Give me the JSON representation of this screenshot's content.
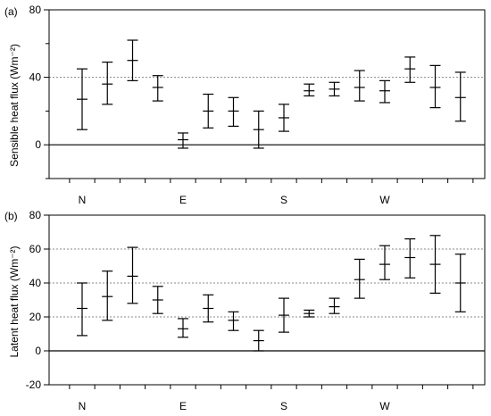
{
  "chart_data": [
    {
      "panel_label": "(a)",
      "type": "errorbar",
      "ylabel": "Sensible heat flux (Wm⁻²)",
      "ylim": [
        -20,
        80
      ],
      "yticks": [
        0,
        40,
        80
      ],
      "reference_lines": [
        40
      ],
      "zero_line": true,
      "grid": "dotted horizontal at 40",
      "x_tick_labels": [
        "N",
        "",
        "",
        "",
        "E",
        "",
        "",
        "",
        "S",
        "",
        "",
        "",
        "W",
        "",
        "",
        ""
      ],
      "points": [
        {
          "mean": 27,
          "low": 9,
          "high": 45
        },
        {
          "mean": 36,
          "low": 24,
          "high": 49
        },
        {
          "mean": 50,
          "low": 38,
          "high": 62
        },
        {
          "mean": 34,
          "low": 26,
          "high": 41
        },
        {
          "mean": 3,
          "low": -2,
          "high": 7
        },
        {
          "mean": 20,
          "low": 10,
          "high": 30
        },
        {
          "mean": 20,
          "low": 11,
          "high": 28
        },
        {
          "mean": 9,
          "low": -2,
          "high": 20
        },
        {
          "mean": 16,
          "low": 8,
          "high": 24
        },
        {
          "mean": 32,
          "low": 29,
          "high": 36
        },
        {
          "mean": 33,
          "low": 29,
          "high": 37
        },
        {
          "mean": 34,
          "low": 26,
          "high": 44
        },
        {
          "mean": 32,
          "low": 25,
          "high": 38
        },
        {
          "mean": 45,
          "low": 37,
          "high": 52
        },
        {
          "mean": 34,
          "low": 22,
          "high": 47
        },
        {
          "mean": 28,
          "low": 14,
          "high": 43
        }
      ]
    },
    {
      "panel_label": "(b)",
      "type": "errorbar",
      "ylabel": "Latent heat flux (Wm⁻²)",
      "ylim": [
        -20,
        80
      ],
      "yticks": [
        -20,
        0,
        20,
        40,
        60,
        80
      ],
      "reference_lines": [
        20,
        40,
        60
      ],
      "zero_line": true,
      "grid": "dotted horizontal at 20, 40, 60",
      "x_tick_labels": [
        "N",
        "",
        "",
        "",
        "E",
        "",
        "",
        "",
        "S",
        "",
        "",
        "",
        "W",
        "",
        "",
        ""
      ],
      "points": [
        {
          "mean": 25,
          "low": 9,
          "high": 40
        },
        {
          "mean": 32,
          "low": 18,
          "high": 47
        },
        {
          "mean": 44,
          "low": 28,
          "high": 61
        },
        {
          "mean": 30,
          "low": 22,
          "high": 38
        },
        {
          "mean": 13,
          "low": 8,
          "high": 19
        },
        {
          "mean": 25,
          "low": 17,
          "high": 33
        },
        {
          "mean": 18,
          "low": 12,
          "high": 23
        },
        {
          "mean": 6,
          "low": 0,
          "high": 12
        },
        {
          "mean": 21,
          "low": 11,
          "high": 31
        },
        {
          "mean": 22,
          "low": 20,
          "high": 24
        },
        {
          "mean": 26,
          "low": 22,
          "high": 31
        },
        {
          "mean": 42,
          "low": 31,
          "high": 54
        },
        {
          "mean": 51,
          "low": 42,
          "high": 62
        },
        {
          "mean": 55,
          "low": 43,
          "high": 66
        },
        {
          "mean": 51,
          "low": 34,
          "high": 68
        },
        {
          "mean": 40,
          "low": 23,
          "high": 57
        }
      ]
    }
  ]
}
